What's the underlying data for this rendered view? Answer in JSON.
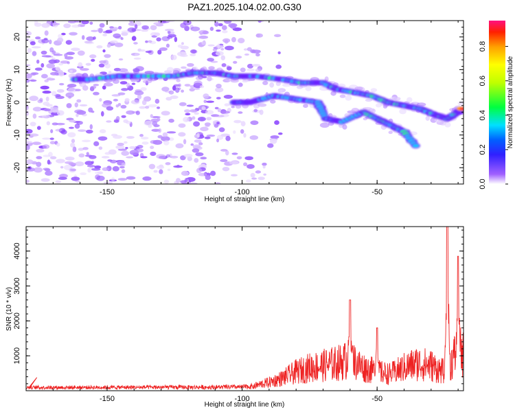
{
  "title": "PAZ1.2025.104.02.00.G30",
  "chart_data": [
    {
      "type": "heatmap",
      "name": "spectrogram",
      "xlabel": "Height of straight line (km)",
      "ylabel": "Frequency (Hz)",
      "xlim": [
        -180,
        -18
      ],
      "ylim": [
        -25,
        25
      ],
      "xticks": [
        -150,
        -100,
        -50
      ],
      "yticks": [
        -20,
        -10,
        0,
        10,
        20
      ],
      "colorbar": {
        "label": "Normalized spectral amplitude",
        "range": [
          0,
          0.95
        ],
        "ticks": [
          0.0,
          0.2,
          0.4,
          0.6,
          0.8
        ]
      },
      "noise_region_x": [
        -180,
        -92
      ],
      "main_track": [
        [
          -162,
          7
        ],
        [
          -157,
          7
        ],
        [
          -146,
          8
        ],
        [
          -138,
          8
        ],
        [
          -125,
          8
        ],
        [
          -118,
          9
        ],
        [
          -110,
          9
        ],
        [
          -103,
          8
        ],
        [
          -95,
          8
        ],
        [
          -85,
          7
        ],
        [
          -78,
          6
        ],
        [
          -70,
          6
        ],
        [
          -65,
          4
        ],
        [
          -58,
          3
        ],
        [
          -52,
          2
        ],
        [
          -46,
          0
        ],
        [
          -40,
          -1
        ],
        [
          -34,
          -2
        ],
        [
          -28,
          -4
        ],
        [
          -24,
          -5
        ],
        [
          -20,
          -3
        ],
        [
          -18,
          -2
        ]
      ],
      "secondary_track": [
        [
          -103,
          0
        ],
        [
          -97,
          0
        ],
        [
          -88,
          2
        ],
        [
          -80,
          1
        ],
        [
          -72,
          0
        ],
        [
          -69,
          -5
        ],
        [
          -63,
          -6
        ],
        [
          -55,
          -3
        ],
        [
          -50,
          -5
        ],
        [
          -45,
          -7
        ],
        [
          -40,
          -9
        ],
        [
          -35,
          -14
        ]
      ],
      "peak_amplitude_at": [
        -18,
        -2
      ]
    },
    {
      "type": "line",
      "name": "snr",
      "xlabel": "Height of straight line (km)",
      "ylabel": "SNR (10 * v/v)",
      "xlim": [
        -180,
        -18
      ],
      "ylim": [
        0,
        4700
      ],
      "xticks": [
        -150,
        -100,
        -50
      ],
      "yticks": [
        1000,
        2000,
        3000,
        4000
      ],
      "series": [
        {
          "name": "SNR",
          "color": "#ee2222",
          "envelope": [
            [
              -180,
              150
            ],
            [
              -150,
              160
            ],
            [
              -120,
              170
            ],
            [
              -100,
              190
            ],
            [
              -95,
              250
            ],
            [
              -90,
              400
            ],
            [
              -85,
              600
            ],
            [
              -80,
              900
            ],
            [
              -75,
              1100
            ],
            [
              -70,
              1200
            ],
            [
              -65,
              1300
            ],
            [
              -60,
              1500
            ],
            [
              -55,
              1100
            ],
            [
              -50,
              900
            ],
            [
              -45,
              800
            ],
            [
              -40,
              1100
            ],
            [
              -35,
              1300
            ],
            [
              -30,
              1200
            ],
            [
              -27,
              1000
            ],
            [
              -25,
              900
            ],
            [
              -22,
              1500
            ],
            [
              -20,
              2000
            ],
            [
              -18,
              1700
            ]
          ],
          "peaks": [
            [
              -60,
              2600
            ],
            [
              -50,
              1800
            ],
            [
              -24,
              4700
            ],
            [
              -20,
              3850
            ],
            [
              -17,
              2800
            ]
          ]
        }
      ]
    }
  ]
}
